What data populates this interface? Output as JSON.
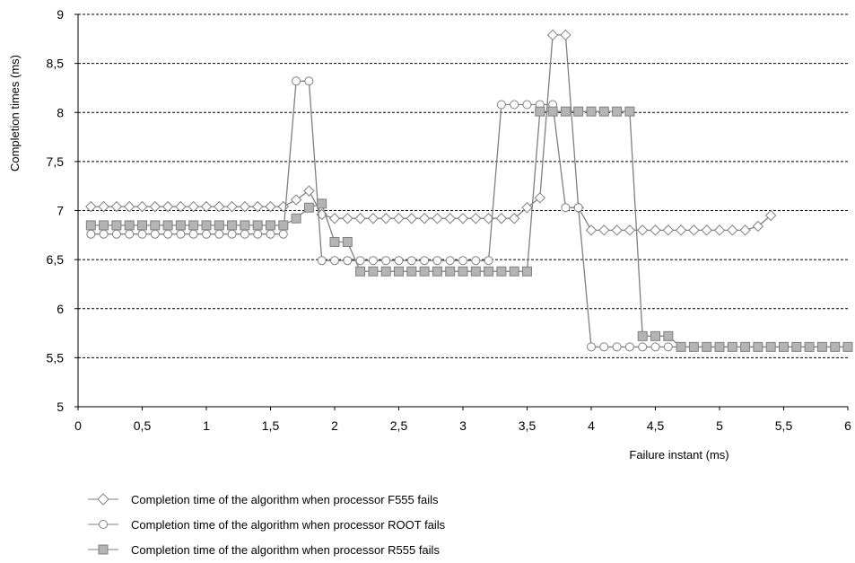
{
  "chart_data": {
    "type": "line",
    "title": "",
    "xlabel": "Failure instant (ms)",
    "ylabel": "Completion times (ms)",
    "xlim": [
      0,
      6
    ],
    "ylim": [
      5,
      9
    ],
    "xticks": [
      "0",
      "0,5",
      "1",
      "1,5",
      "2",
      "2,5",
      "3",
      "3,5",
      "4",
      "4,5",
      "5",
      "5,5",
      "6"
    ],
    "yticks": [
      "5",
      "5,5",
      "6",
      "6,5",
      "7",
      "7,5",
      "8",
      "8,5",
      "9"
    ],
    "grid": "horizontal dashed",
    "legend_position": "bottom",
    "series": [
      {
        "name": "Completion time of the algorithm when processor F555 fails",
        "marker": "diamond",
        "color": "#808080",
        "fill": "#ffffff",
        "x": [
          0.1,
          0.2,
          0.3,
          0.4,
          0.5,
          0.6,
          0.7,
          0.8,
          0.9,
          1.0,
          1.1,
          1.2,
          1.3,
          1.4,
          1.5,
          1.6,
          1.7,
          1.8,
          1.9,
          2.0,
          2.1,
          2.2,
          2.3,
          2.4,
          2.5,
          2.6,
          2.7,
          2.8,
          2.9,
          3.0,
          3.1,
          3.2,
          3.3,
          3.4,
          3.5,
          3.6,
          3.7,
          3.8,
          3.9,
          4.0,
          4.1,
          4.2,
          4.3,
          4.4,
          4.5,
          4.6,
          4.7,
          4.8,
          4.9,
          5.0,
          5.1,
          5.2,
          5.3,
          5.4
        ],
        "y": [
          7.04,
          7.04,
          7.04,
          7.04,
          7.04,
          7.04,
          7.04,
          7.04,
          7.04,
          7.04,
          7.04,
          7.04,
          7.04,
          7.04,
          7.04,
          7.04,
          7.11,
          7.2,
          6.96,
          6.92,
          6.92,
          6.92,
          6.92,
          6.92,
          6.92,
          6.92,
          6.92,
          6.92,
          6.92,
          6.92,
          6.92,
          6.92,
          6.92,
          6.92,
          7.03,
          7.13,
          8.79,
          8.79,
          7.03,
          6.8,
          6.8,
          6.8,
          6.8,
          6.8,
          6.8,
          6.8,
          6.8,
          6.8,
          6.8,
          6.8,
          6.8,
          6.8,
          6.84,
          6.95
        ]
      },
      {
        "name": "Completion time of the algorithm when processor ROOT fails",
        "marker": "circle",
        "color": "#808080",
        "fill": "#ffffff",
        "x": [
          0.1,
          0.2,
          0.3,
          0.4,
          0.5,
          0.6,
          0.7,
          0.8,
          0.9,
          1.0,
          1.1,
          1.2,
          1.3,
          1.4,
          1.5,
          1.6,
          1.7,
          1.8,
          1.9,
          2.0,
          2.1,
          2.2,
          2.3,
          2.4,
          2.5,
          2.6,
          2.7,
          2.8,
          2.9,
          3.0,
          3.1,
          3.2,
          3.3,
          3.4,
          3.5,
          3.6,
          3.7,
          3.8,
          3.9,
          4.0,
          4.1,
          4.2,
          4.3,
          4.4,
          4.5,
          4.6,
          4.7,
          4.8,
          4.9,
          5.0,
          5.1,
          5.2,
          5.3,
          5.4,
          5.5,
          5.6,
          5.7,
          5.8,
          5.9,
          6.0
        ],
        "y": [
          6.76,
          6.76,
          6.76,
          6.76,
          6.76,
          6.76,
          6.76,
          6.76,
          6.76,
          6.76,
          6.76,
          6.76,
          6.76,
          6.76,
          6.76,
          6.76,
          8.32,
          8.32,
          6.49,
          6.49,
          6.49,
          6.49,
          6.49,
          6.49,
          6.49,
          6.49,
          6.49,
          6.49,
          6.49,
          6.49,
          6.49,
          6.49,
          8.08,
          8.08,
          8.08,
          8.08,
          8.08,
          7.03,
          7.03,
          5.61,
          5.61,
          5.61,
          5.61,
          5.61,
          5.61,
          5.61,
          5.61,
          5.61,
          5.61,
          5.61,
          5.61,
          5.61,
          5.61,
          5.61,
          5.61,
          5.61,
          5.61,
          5.61,
          5.61,
          5.61
        ]
      },
      {
        "name": "Completion time of the algorithm when processor R555 fails",
        "marker": "square",
        "color": "#808080",
        "fill": "#b4b4b4",
        "x": [
          0.1,
          0.2,
          0.3,
          0.4,
          0.5,
          0.6,
          0.7,
          0.8,
          0.9,
          1.0,
          1.1,
          1.2,
          1.3,
          1.4,
          1.5,
          1.6,
          1.7,
          1.8,
          1.9,
          2.0,
          2.1,
          2.2,
          2.3,
          2.4,
          2.5,
          2.6,
          2.7,
          2.8,
          2.9,
          3.0,
          3.1,
          3.2,
          3.3,
          3.4,
          3.5,
          3.6,
          3.7,
          3.8,
          3.9,
          4.0,
          4.1,
          4.2,
          4.3,
          4.4,
          4.5,
          4.6,
          4.7,
          4.8,
          4.9,
          5.0,
          5.1,
          5.2,
          5.3,
          5.4,
          5.5,
          5.6,
          5.7,
          5.8,
          5.9,
          6.0
        ],
        "y": [
          6.85,
          6.85,
          6.85,
          6.85,
          6.85,
          6.85,
          6.85,
          6.85,
          6.85,
          6.85,
          6.85,
          6.85,
          6.85,
          6.85,
          6.85,
          6.85,
          6.92,
          7.03,
          7.07,
          6.68,
          6.68,
          6.38,
          6.38,
          6.38,
          6.38,
          6.38,
          6.38,
          6.38,
          6.38,
          6.38,
          6.38,
          6.38,
          6.38,
          6.38,
          6.38,
          8.01,
          8.01,
          8.01,
          8.01,
          8.01,
          8.01,
          8.01,
          8.01,
          5.72,
          5.72,
          5.72,
          5.61,
          5.61,
          5.61,
          5.61,
          5.61,
          5.61,
          5.61,
          5.61,
          5.61,
          5.61,
          5.61,
          5.61,
          5.61,
          5.61
        ]
      }
    ]
  }
}
